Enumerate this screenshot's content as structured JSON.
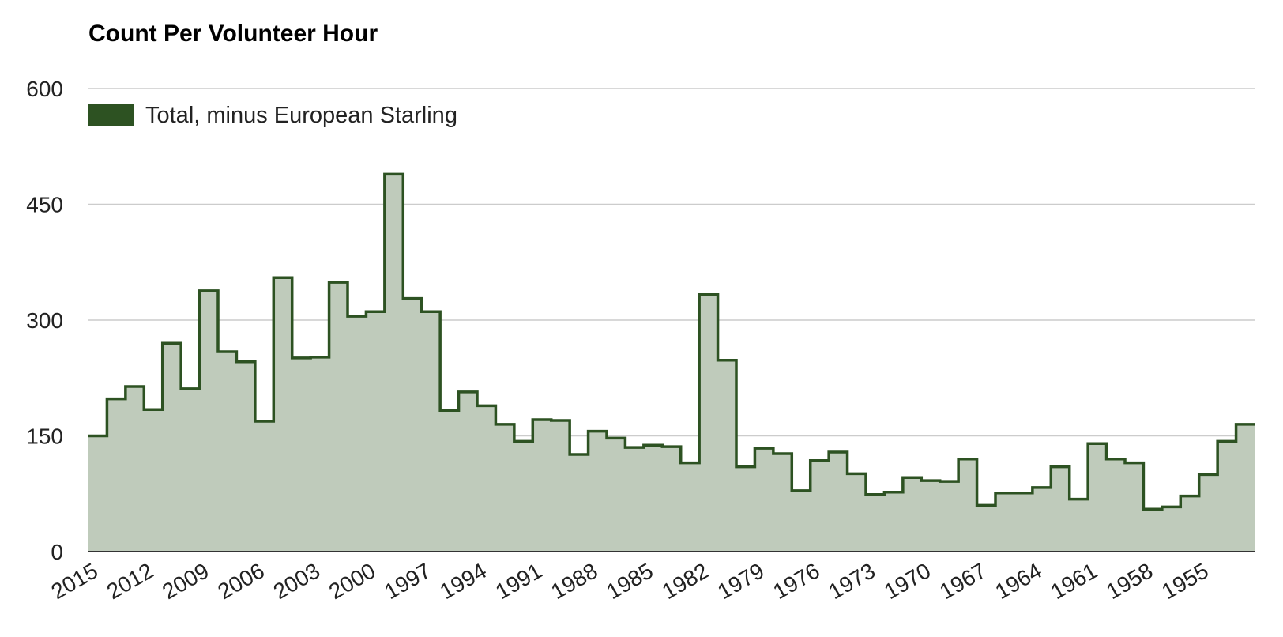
{
  "chart_data": {
    "type": "area",
    "subtype": "stepped",
    "title": "Count Per Volunteer Hour",
    "xlabel": "",
    "ylabel": "",
    "ylim": [
      0,
      600
    ],
    "yticks": [
      "0",
      "150",
      "300",
      "450",
      "600"
    ],
    "grid": true,
    "legend_position": "top-left",
    "x": [
      2015,
      2014,
      2013,
      2012,
      2011,
      2010,
      2009,
      2008,
      2007,
      2006,
      2005,
      2004,
      2003,
      2002,
      2001,
      2000,
      1999,
      1998,
      1997,
      1996,
      1995,
      1994,
      1993,
      1992,
      1991,
      1990,
      1989,
      1988,
      1987,
      1986,
      1985,
      1984,
      1983,
      1982,
      1981,
      1980,
      1979,
      1978,
      1977,
      1976,
      1975,
      1974,
      1973,
      1972,
      1971,
      1970,
      1969,
      1968,
      1967,
      1966,
      1965,
      1964,
      1963,
      1962,
      1961,
      1960,
      1959,
      1958,
      1957,
      1956,
      1955,
      1954,
      1953
    ],
    "x_tick_labels": [
      "2015",
      "2012",
      "2009",
      "2006",
      "2003",
      "2000",
      "1997",
      "1994",
      "1991",
      "1988",
      "1985",
      "1982",
      "1979",
      "1976",
      "1973",
      "1970",
      "1967",
      "1964",
      "1961",
      "1958",
      "1955"
    ],
    "series": [
      {
        "name": "Total, minus European Starling",
        "values": [
          150,
          198,
          214,
          184,
          270,
          211,
          338,
          259,
          246,
          169,
          355,
          251,
          252,
          349,
          305,
          311,
          489,
          328,
          311,
          183,
          207,
          189,
          165,
          143,
          171,
          170,
          126,
          156,
          147,
          135,
          138,
          136,
          115,
          333,
          248,
          110,
          134,
          127,
          79,
          118,
          129,
          101,
          74,
          77,
          96,
          92,
          91,
          120,
          60,
          76,
          76,
          83,
          110,
          68,
          140,
          120,
          115,
          55,
          58,
          72,
          100,
          143,
          165
        ]
      }
    ]
  },
  "colors": {
    "line": "#2d5222",
    "fill": "#bfcbbb",
    "legend_swatch": "#2d5222",
    "grid": "#cccccc",
    "baseline": "#333333",
    "tick_text": "#222222"
  }
}
